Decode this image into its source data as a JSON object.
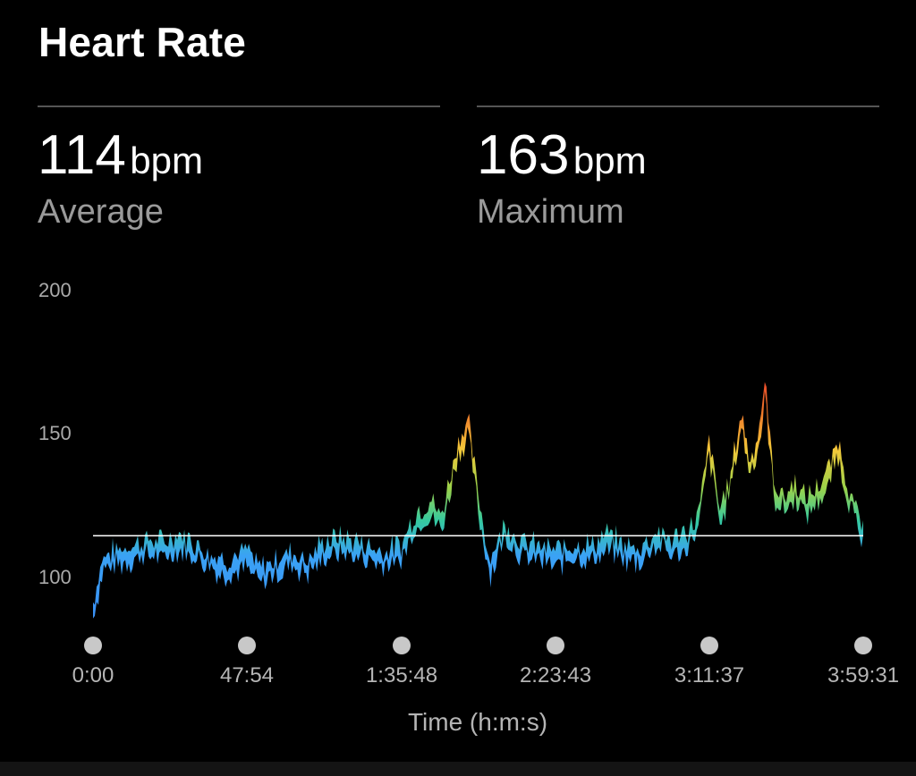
{
  "header": {
    "title": "Heart Rate"
  },
  "stats": [
    {
      "value": "114",
      "unit": "bpm",
      "label": "Average"
    },
    {
      "value": "163",
      "unit": "bpm",
      "label": "Maximum"
    }
  ],
  "colors": {
    "background": "#000000",
    "low": "#3a8ef5",
    "mid": "#35c9a0",
    "high": "#f05a2a",
    "average_line": "#ffffff"
  },
  "chart_data": {
    "type": "area",
    "title": "",
    "xlabel": "Time (h:m:s)",
    "ylabel": "",
    "y_ticks": [
      "200",
      "150",
      "100"
    ],
    "x_ticks": [
      "0:00",
      "47:54",
      "1:35:48",
      "2:23:43",
      "3:11:37",
      "3:59:31"
    ],
    "ylim": [
      80,
      200
    ],
    "xlim": [
      0,
      14371
    ],
    "average": 114,
    "maximum": 163,
    "series": [
      {
        "x": [
          0,
          180,
          400,
          700,
          1000,
          1300,
          1600,
          1900,
          2200,
          2500,
          2874,
          3100,
          3400,
          3700,
          4000,
          4300,
          4600,
          5000,
          5400,
          5748,
          6000,
          6300,
          6500,
          6800,
          7000,
          7200,
          7400,
          7700,
          8000,
          8300,
          8623,
          9000,
          9300,
          9600,
          9900,
          10200,
          10500,
          10800,
          11100,
          11300,
          11497,
          11700,
          11900,
          12100,
          12250,
          12400,
          12550,
          12700,
          12900,
          13100,
          13300,
          13500,
          13700,
          13900,
          14100,
          14371
        ],
        "y": [
          88,
          104,
          106,
          108,
          110,
          109,
          112,
          109,
          105,
          103,
          106,
          100,
          103,
          106,
          103,
          109,
          111,
          109,
          106,
          108,
          119,
          124,
          118,
          144,
          152,
          124,
          103,
          116,
          109,
          108,
          106,
          109,
          108,
          112,
          108,
          107,
          113,
          110,
          113,
          119,
          145,
          120,
          133,
          155,
          138,
          146,
          165,
          130,
          125,
          130,
          124,
          128,
          133,
          145,
          128,
          113
        ]
      }
    ]
  }
}
